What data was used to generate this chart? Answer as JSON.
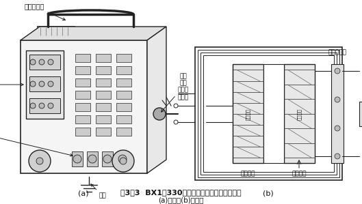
{
  "title_line1": "图3－3  BX1－330型交流弧焊机的外形及原理图",
  "title_line2": "(a)外形；(b)原理。",
  "label_a": "(a)",
  "label_b": "(b)",
  "bg_color": "#ffffff",
  "line_color": "#222222",
  "fig_width": 5.29,
  "fig_height": 2.99,
  "dpi": 100
}
